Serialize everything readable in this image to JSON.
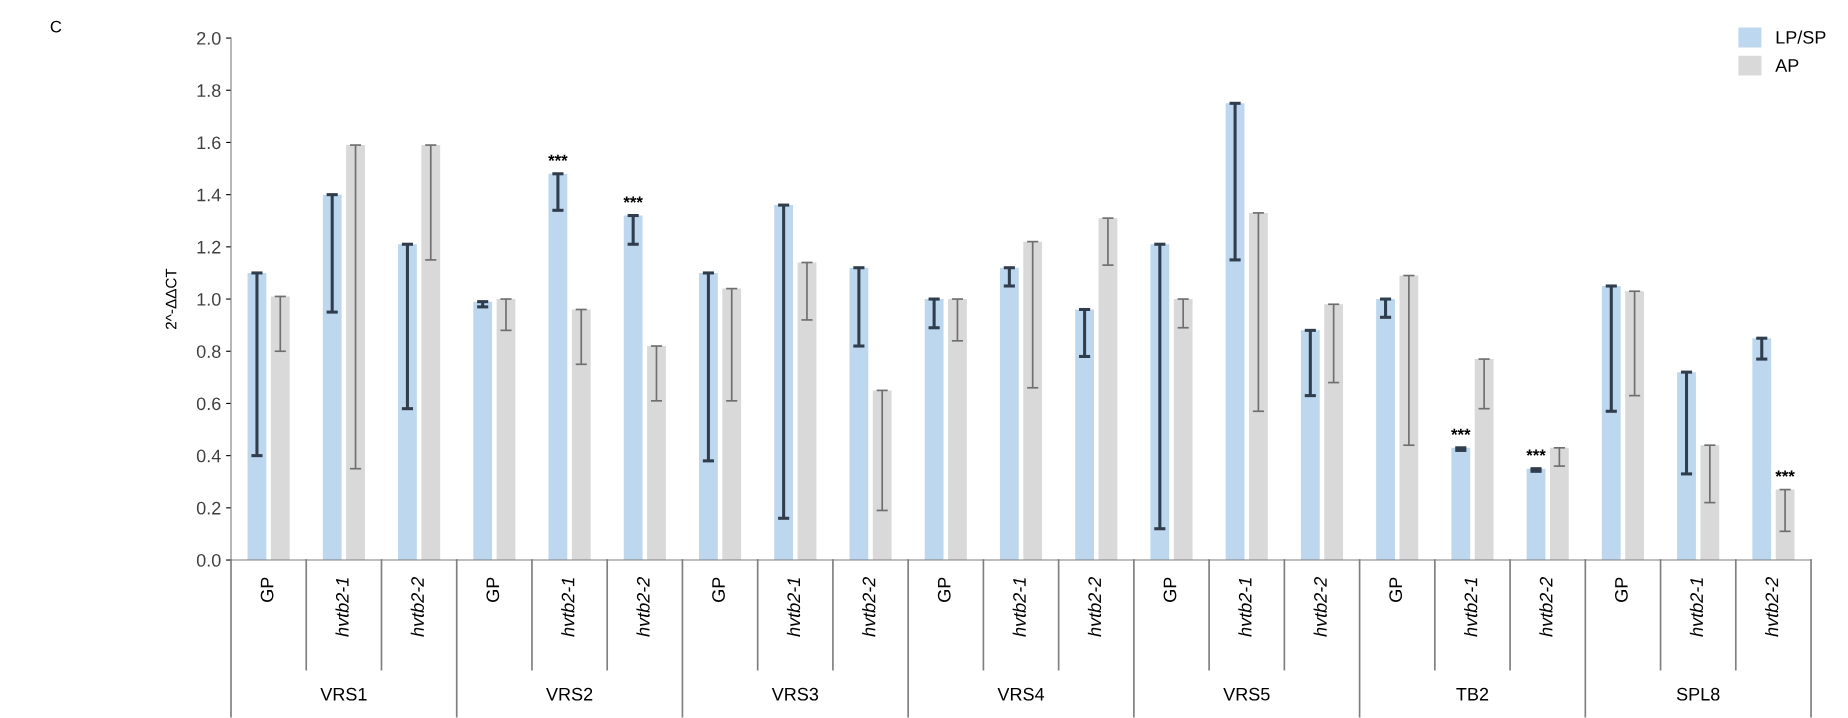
{
  "chart_data": {
    "type": "bar",
    "ylabel": "2^-ΔΔCT",
    "categories": [
      "GP",
      "hvtb2-1",
      "hvtb2-2",
      "GP",
      "hvtb2-1",
      "hvtb2-2",
      "GP",
      "hvtb2-1",
      "hvtb2-2",
      "GP",
      "hvtb2-1",
      "hvtb2-2",
      "GP",
      "hvtb2-1",
      "hvtb2-2",
      "GP",
      "hvtb2-1",
      "hvtb2-2",
      "GP",
      "hvtb2-1",
      "hvtb2-2"
    ],
    "series": [
      {
        "name": "LP/SP",
        "color": "#bdd7ee",
        "values": [
          1.1,
          1.4,
          1.21,
          0.99,
          1.48,
          1.32,
          1.1,
          1.36,
          1.12,
          1.0,
          1.12,
          0.96,
          1.21,
          1.75,
          0.88,
          1.0,
          0.43,
          0.35,
          1.05,
          0.72,
          0.85
        ],
        "errors": [
          [
            0.4,
            1.1
          ],
          [
            0.95,
            1.4
          ],
          [
            0.58,
            1.21
          ],
          [
            0.97,
            0.99
          ],
          [
            1.34,
            1.48
          ],
          [
            1.21,
            1.32
          ],
          [
            0.38,
            1.1
          ],
          [
            0.16,
            1.36
          ],
          [
            0.82,
            1.12
          ],
          [
            0.89,
            1.0
          ],
          [
            1.05,
            1.12
          ],
          [
            0.78,
            0.96
          ],
          [
            0.12,
            1.21
          ],
          [
            1.15,
            1.75
          ],
          [
            0.63,
            0.88
          ],
          [
            0.93,
            1.0
          ],
          [
            0.42,
            0.43
          ],
          [
            0.34,
            0.35
          ],
          [
            0.57,
            1.05
          ],
          [
            0.33,
            0.72
          ],
          [
            0.77,
            0.85
          ]
        ],
        "value_labels": [
          null,
          null,
          null,
          null,
          "***",
          "***",
          null,
          null,
          null,
          null,
          null,
          null,
          null,
          null,
          null,
          null,
          "***",
          "***",
          null,
          null,
          null
        ]
      },
      {
        "name": "AP",
        "color": "#d9d9d9",
        "values": [
          1.01,
          1.59,
          1.59,
          1.0,
          0.96,
          0.82,
          1.04,
          1.14,
          0.65,
          1.0,
          1.22,
          1.31,
          1.0,
          1.33,
          0.98,
          1.09,
          0.77,
          0.43,
          1.03,
          0.44,
          0.27
        ],
        "errors": [
          [
            0.8,
            1.01
          ],
          [
            0.35,
            1.59
          ],
          [
            1.15,
            1.59
          ],
          [
            0.88,
            1.0
          ],
          [
            0.75,
            0.96
          ],
          [
            0.61,
            0.82
          ],
          [
            0.61,
            1.04
          ],
          [
            0.92,
            1.14
          ],
          [
            0.19,
            0.65
          ],
          [
            0.84,
            1.0
          ],
          [
            0.66,
            1.22
          ],
          [
            1.13,
            1.31
          ],
          [
            0.89,
            1.0
          ],
          [
            0.57,
            1.33
          ],
          [
            0.68,
            0.98
          ],
          [
            0.44,
            1.09
          ],
          [
            0.58,
            0.77
          ],
          [
            0.36,
            0.43
          ],
          [
            0.63,
            1.03
          ],
          [
            0.22,
            0.44
          ],
          [
            0.11,
            0.27
          ]
        ],
        "value_labels": [
          null,
          null,
          null,
          null,
          null,
          null,
          null,
          null,
          null,
          null,
          null,
          null,
          null,
          null,
          null,
          null,
          null,
          null,
          null,
          null,
          "***"
        ]
      }
    ],
    "ylim": [
      0,
      2.0
    ],
    "yticks": [
      {
        "value": 0,
        "label": "0.0"
      },
      {
        "value": 0.2,
        "label": "0.2"
      },
      {
        "value": 0.4,
        "label": "0.4"
      },
      {
        "value": 0.6,
        "label": "0.6"
      },
      {
        "value": 0.8,
        "label": "0.8"
      },
      {
        "value": 1.0,
        "label": "1.0"
      },
      {
        "value": 1.2,
        "label": "1.2"
      },
      {
        "value": 1.4,
        "label": "1.4"
      },
      {
        "value": 1.6,
        "label": "1.6"
      },
      {
        "value": 1.8,
        "label": "1.8"
      },
      {
        "value": 2.0,
        "label": "2.0"
      }
    ],
    "grid": false,
    "legend": "top right",
    "annotations": [
      "C",
      "VRS1",
      "VRS2",
      "VRS3",
      "VRS4",
      "VRS5",
      "TB2",
      "SPL8"
    ]
  }
}
